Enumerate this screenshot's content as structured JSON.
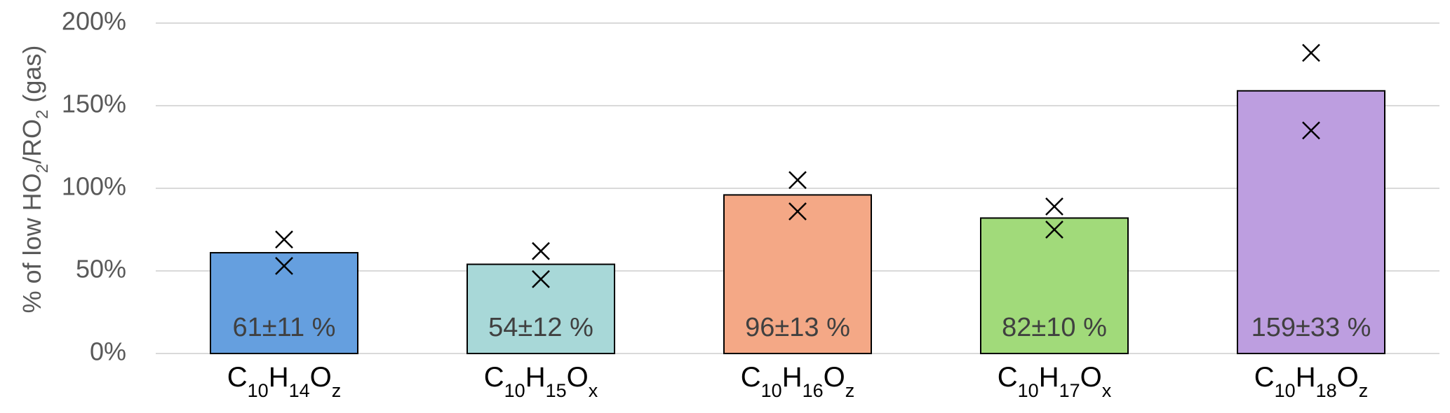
{
  "chart_data": {
    "type": "bar",
    "ylabel": "% of low HO2/RO2 (gas)",
    "ylabel_parts": [
      {
        "text": "% of low HO",
        "sub": false
      },
      {
        "text": "2",
        "sub": true
      },
      {
        "text": "/RO",
        "sub": false
      },
      {
        "text": "2",
        "sub": true
      },
      {
        "text": " (gas)",
        "sub": false
      }
    ],
    "ylim": [
      0,
      200
    ],
    "yticks": [
      0,
      50,
      100,
      150,
      200
    ],
    "ytick_labels": [
      "0%",
      "50%",
      "100%",
      "150%",
      "200%"
    ],
    "grid": true,
    "categories": [
      "C10H14Oz",
      "C10H15Ox",
      "C10H16Oz",
      "C10H17Ox",
      "C10H18Oz"
    ],
    "category_parts": [
      [
        {
          "t": "C",
          "s": false
        },
        {
          "t": "10",
          "s": true
        },
        {
          "t": "H",
          "s": false
        },
        {
          "t": "14",
          "s": true
        },
        {
          "t": "O",
          "s": false
        },
        {
          "t": "z",
          "s": true
        }
      ],
      [
        {
          "t": "C",
          "s": false
        },
        {
          "t": "10",
          "s": true
        },
        {
          "t": "H",
          "s": false
        },
        {
          "t": "15",
          "s": true
        },
        {
          "t": "O",
          "s": false
        },
        {
          "t": "x",
          "s": true
        }
      ],
      [
        {
          "t": "C",
          "s": false
        },
        {
          "t": "10",
          "s": true
        },
        {
          "t": "H",
          "s": false
        },
        {
          "t": "16",
          "s": true
        },
        {
          "t": "O",
          "s": false
        },
        {
          "t": "z",
          "s": true
        }
      ],
      [
        {
          "t": "C",
          "s": false
        },
        {
          "t": "10",
          "s": true
        },
        {
          "t": "H",
          "s": false
        },
        {
          "t": "17",
          "s": true
        },
        {
          "t": "O",
          "s": false
        },
        {
          "t": "x",
          "s": true
        }
      ],
      [
        {
          "t": "C",
          "s": false
        },
        {
          "t": "10",
          "s": true
        },
        {
          "t": "H",
          "s": false
        },
        {
          "t": "18",
          "s": true
        },
        {
          "t": "O",
          "s": false
        },
        {
          "t": "z",
          "s": true
        }
      ]
    ],
    "values": [
      61,
      54,
      96,
      82,
      159
    ],
    "data_labels": [
      "61±11 %",
      "54±12 %",
      "96±13 %",
      "82±10 %",
      "159±33 %"
    ],
    "colors": [
      "#659fdf",
      "#a8d8d8",
      "#f4a886",
      "#a1da7a",
      "#bd9ee0"
    ],
    "markers": [
      [
        69,
        53
      ],
      [
        62,
        45
      ],
      [
        105,
        86
      ],
      [
        89,
        75
      ],
      [
        182,
        135
      ]
    ]
  }
}
